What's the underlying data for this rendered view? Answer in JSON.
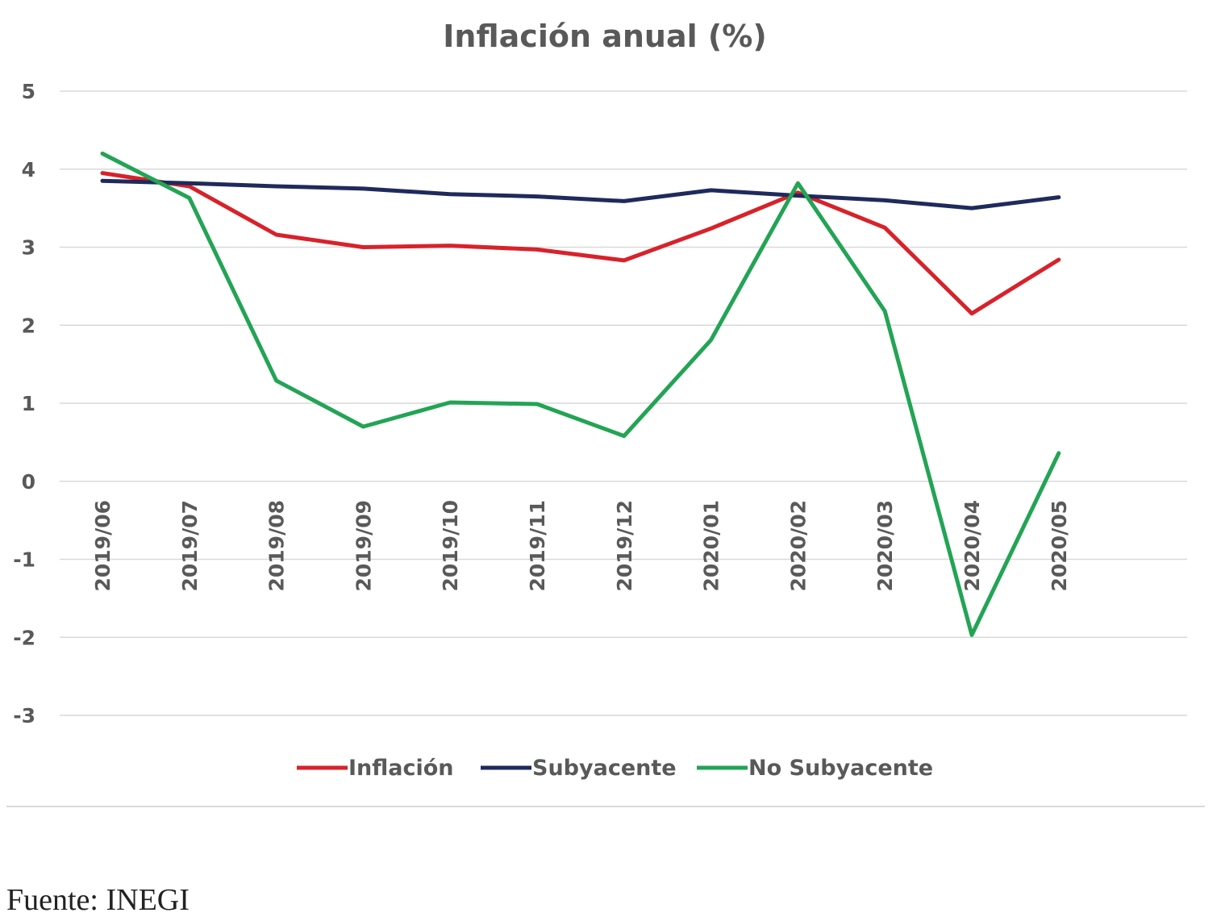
{
  "chart_data": {
    "type": "line",
    "title": "Inflación anual (%)",
    "categories": [
      "2019/06",
      "2019/07",
      "2019/08",
      "2019/09",
      "2019/10",
      "2019/11",
      "2019/12",
      "2020/01",
      "2020/02",
      "2020/03",
      "2020/04",
      "2020/05"
    ],
    "ylim": [
      -3,
      5
    ],
    "yticks": [
      5,
      4,
      3,
      2,
      1,
      0,
      -1,
      -2,
      -3
    ],
    "grid": true,
    "legend_position": "bottom",
    "series": [
      {
        "name": "Inflación",
        "color": "#d8222a",
        "values": [
          3.95,
          3.78,
          3.16,
          3.0,
          3.02,
          2.97,
          2.83,
          3.24,
          3.7,
          3.25,
          2.15,
          2.84
        ]
      },
      {
        "name": "Subyacente",
        "color": "#1f2a5c",
        "values": [
          3.85,
          3.82,
          3.78,
          3.75,
          3.68,
          3.65,
          3.59,
          3.73,
          3.66,
          3.6,
          3.5,
          3.64
        ]
      },
      {
        "name": "No Subyacente",
        "color": "#23a455",
        "values": [
          4.2,
          3.63,
          1.29,
          0.7,
          1.01,
          0.99,
          0.58,
          1.81,
          3.82,
          2.18,
          -1.97,
          0.36
        ]
      }
    ]
  },
  "source": "Fuente: INEGI"
}
